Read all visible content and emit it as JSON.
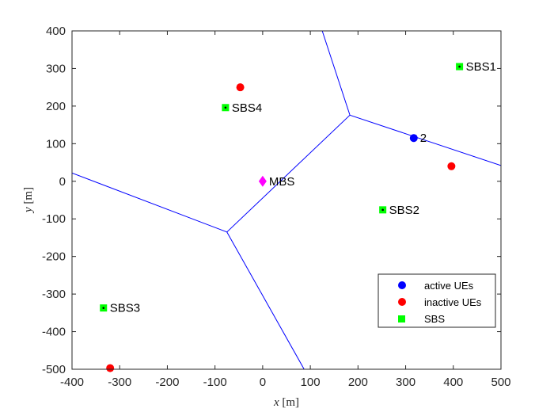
{
  "chart_data": {
    "type": "scatter",
    "title": "",
    "xlabel_var": "x",
    "xlabel_unit": "[m]",
    "ylabel_var": "y",
    "ylabel_unit": "[m]",
    "xlim": [
      -400,
      500
    ],
    "ylim": [
      -500,
      400
    ],
    "xticks": [
      -400,
      -300,
      -200,
      -100,
      0,
      100,
      200,
      300,
      400,
      500
    ],
    "yticks": [
      -500,
      -400,
      -300,
      -200,
      -100,
      0,
      100,
      200,
      300,
      400
    ],
    "grid": false,
    "legend_position": "lower-right",
    "legend": [
      {
        "label": "active UEs",
        "marker": "circle",
        "color": "#0000ff"
      },
      {
        "label": "inactive UEs",
        "marker": "circle",
        "color": "#ff0000"
      },
      {
        "label": "SBS",
        "marker": "square",
        "color": "#00ff00"
      }
    ],
    "series": [
      {
        "name": "active UEs",
        "color": "#0000ff",
        "points": [
          {
            "x": 317,
            "y": 115,
            "label": "2"
          }
        ]
      },
      {
        "name": "inactive UEs",
        "color": "#ff0000",
        "points": [
          {
            "x": -47,
            "y": 250
          },
          {
            "x": 396,
            "y": 40
          },
          {
            "x": -320,
            "y": -497
          }
        ]
      },
      {
        "name": "SBS",
        "color": "#00ff00",
        "points": [
          {
            "x": 413,
            "y": 305,
            "label": "SBS1"
          },
          {
            "x": 252,
            "y": -76,
            "label": "SBS2"
          },
          {
            "x": -334,
            "y": -337,
            "label": "SBS3"
          },
          {
            "x": -78,
            "y": 196,
            "label": "SBS4"
          }
        ]
      },
      {
        "name": "MBS",
        "color": "#ff00ff",
        "points": [
          {
            "x": 0,
            "y": 0,
            "label": "MBS"
          }
        ]
      }
    ],
    "boundary_lines": {
      "color": "#0000ff",
      "polylines": [
        [
          [
            -400,
            22
          ],
          [
            -75,
            -135
          ],
          [
            183,
            176
          ],
          [
            500,
            42
          ]
        ],
        [
          [
            125,
            400
          ],
          [
            183,
            176
          ]
        ],
        [
          [
            -75,
            -135
          ],
          [
            87,
            -500
          ]
        ]
      ]
    }
  }
}
